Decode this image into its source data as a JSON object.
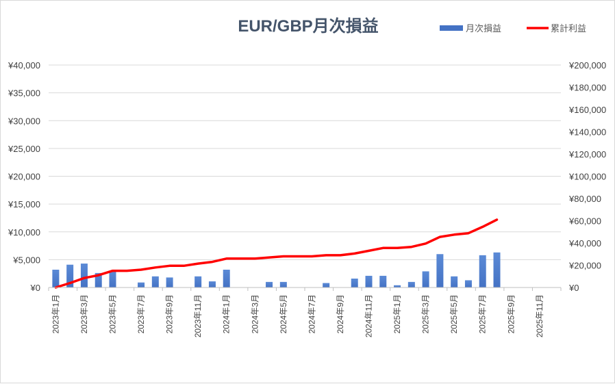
{
  "chart_data": {
    "type": "bar+line",
    "title": "EUR/GBP月次損益",
    "legend": {
      "placement": "top-right",
      "entries": [
        "月次損益",
        "累計利益"
      ]
    },
    "colors": {
      "bars": "#4472c4",
      "line": "#ff0000",
      "grid": "#d9d9d9"
    },
    "categories": [
      "2023年1月",
      "2023年2月",
      "2023年3月",
      "2023年4月",
      "2023年5月",
      "2023年6月",
      "2023年7月",
      "2023年8月",
      "2023年9月",
      "2023年10月",
      "2023年11月",
      "2023年12月",
      "2024年1月",
      "2024年2月",
      "2024年3月",
      "2024年4月",
      "2024年5月",
      "2024年6月",
      "2024年7月",
      "2024年8月",
      "2024年9月",
      "2024年10月",
      "2024年11月",
      "2024年12月",
      "2025年1月",
      "2025年2月",
      "2025年3月",
      "2025年4月",
      "2025年5月",
      "2025年6月",
      "2025年7月",
      "2025年8月",
      "2025年9月",
      "2025年10月",
      "2025年11月",
      "2025年12月"
    ],
    "x_tick_labels": [
      "2023年1月",
      "2023年3月",
      "2023年5月",
      "2023年7月",
      "2023年9月",
      "2023年11月",
      "2024年1月",
      "2024年3月",
      "2024年5月",
      "2024年7月",
      "2024年9月",
      "2024年11月",
      "2025年1月",
      "2025年3月",
      "2025年5月",
      "2025年7月",
      "2025年9月",
      "2025年11月"
    ],
    "series": [
      {
        "name": "月次損益",
        "type": "bar",
        "axis": "left",
        "values": [
          3200,
          4100,
          4300,
          2600,
          2900,
          0,
          900,
          2000,
          1800,
          0,
          2000,
          1100,
          3200,
          0,
          0,
          1000,
          1000,
          0,
          0,
          800,
          0,
          1600,
          2100,
          2100,
          400,
          1000,
          2900,
          6000,
          2000,
          1300,
          5800,
          6300,
          null,
          null,
          null,
          null
        ]
      },
      {
        "name": "累計利益",
        "type": "line",
        "axis": "right",
        "values": [
          0,
          4000,
          8500,
          11000,
          15000,
          15000,
          16000,
          18000,
          19500,
          19500,
          21500,
          23000,
          26000,
          26000,
          26000,
          27000,
          28000,
          28000,
          28000,
          29000,
          29000,
          30500,
          33000,
          35500,
          35500,
          36500,
          39500,
          45500,
          47500,
          48800,
          54500,
          61000,
          null,
          null,
          null,
          null
        ]
      }
    ],
    "y_left": {
      "ylim": [
        0,
        40000
      ],
      "tick_labels": [
        "¥0",
        "¥5,000",
        "¥10,000",
        "¥15,000",
        "¥20,000",
        "¥25,000",
        "¥30,000",
        "¥35,000",
        "¥40,000"
      ]
    },
    "y_right": {
      "ylim": [
        0,
        200000
      ],
      "tick_labels": [
        "¥0",
        "¥20,000",
        "¥40,000",
        "¥60,000",
        "¥80,000",
        "¥100,000",
        "¥120,000",
        "¥140,000",
        "¥160,000",
        "¥180,000",
        "¥200,000"
      ]
    },
    "grid": true
  }
}
